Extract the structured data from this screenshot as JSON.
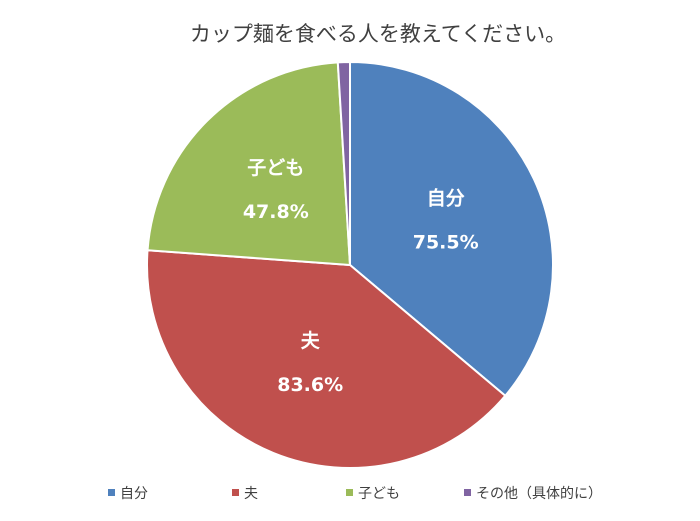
{
  "chart_data": {
    "type": "pie",
    "title": "カップ麺を食べる人を教えてください。",
    "categories": [
      "自分",
      "夫",
      "子ども",
      "その他（具体的に）"
    ],
    "values": [
      75.5,
      83.6,
      47.8,
      2.0
    ],
    "value_labels": [
      "75.5%",
      "83.6%",
      "47.8%",
      ""
    ],
    "colors": [
      "#4F81BD",
      "#C0504D",
      "#9BBB59",
      "#8064A2"
    ],
    "start_angle_deg": 0,
    "direction": "clockwise",
    "legend": {
      "position": "bottom",
      "entries": [
        "自分",
        "夫",
        "子ども",
        "その他（具体的に）"
      ]
    }
  }
}
